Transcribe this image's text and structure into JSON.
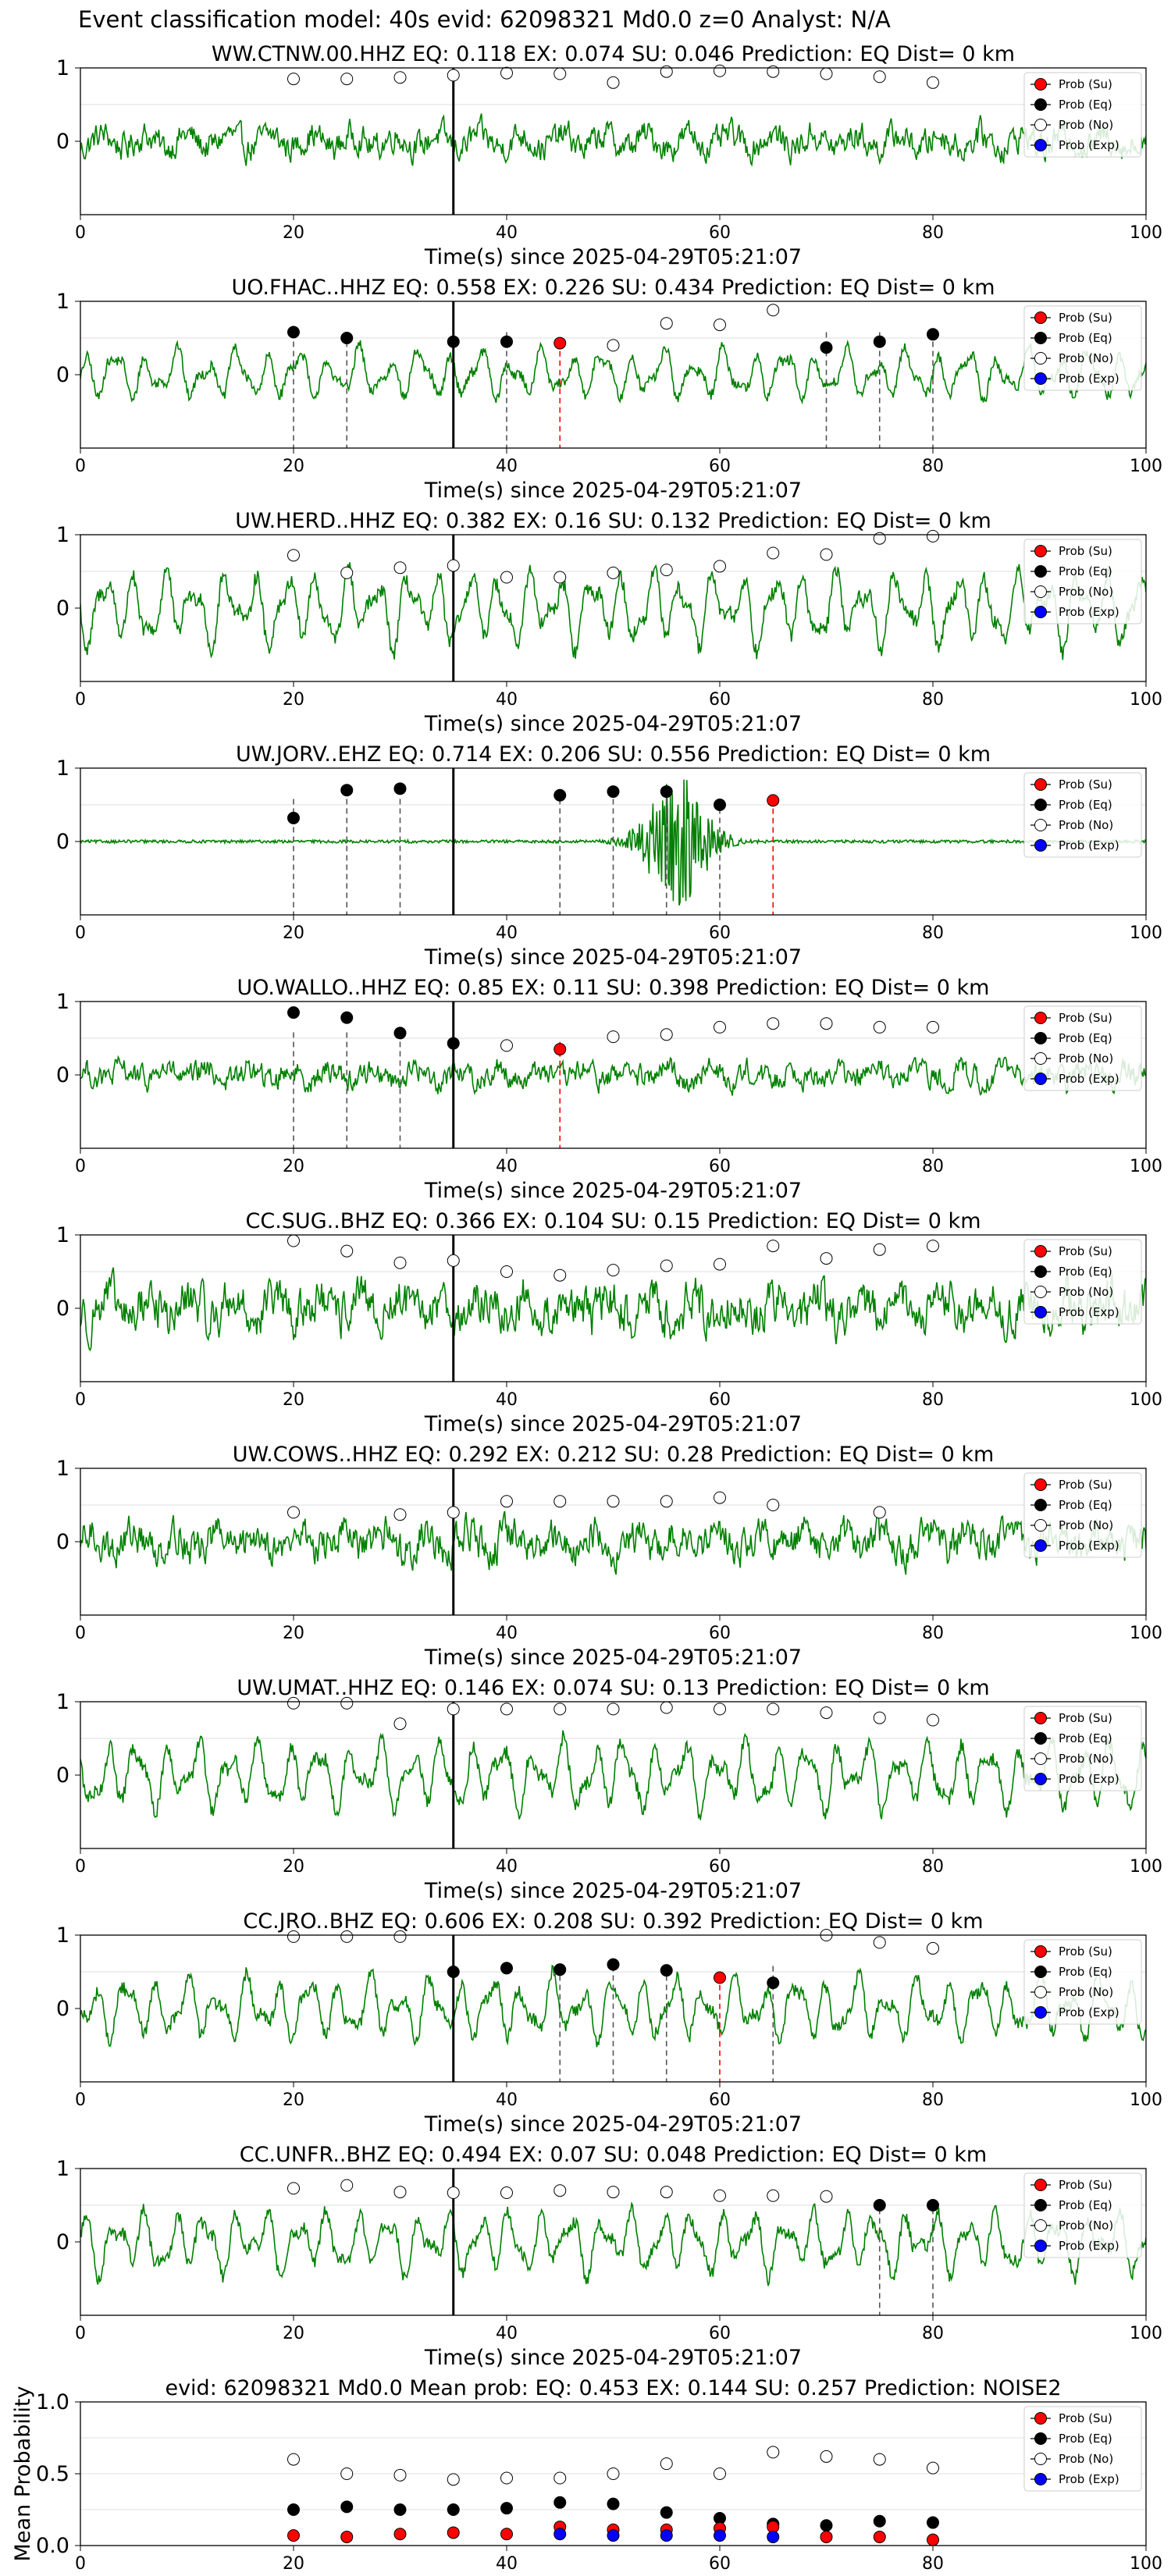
{
  "suptitle": "Event classification model: 40s evid: 62098321 Md0.0 z=0 Analyst: N/A",
  "colors": {
    "trace": "#008000",
    "su": "#ff0000",
    "eq": "#000000",
    "no": "#ffffff",
    "exp": "#0000ff",
    "pick_eq": "#555555",
    "pick_su": "#ff0000",
    "origin": "#000000"
  },
  "legend_labels": [
    "Prob (Su)",
    "Prob (Eq)",
    "Prob (No)",
    "Prob (Exp)"
  ],
  "chart_data": [
    {
      "type": "line",
      "title": "WW.CTNW.00.HHZ   EQ: 0.118  EX: 0.074  SU: 0.046   Prediction: EQ    Dist= 0 km",
      "xlabel": "Time(s) since 2025-04-29T05:21:07",
      "xlim": [
        0,
        100
      ],
      "ylim": [
        -1,
        1
      ],
      "xticks": [
        0,
        20,
        40,
        60,
        80,
        100
      ],
      "yticks": [
        1,
        0
      ],
      "origin_time": 35,
      "legend": "right",
      "trace": {
        "style": "noise",
        "amplitude": 0.35
      },
      "prob_no": [
        [
          20,
          0.85
        ],
        [
          25,
          0.85
        ],
        [
          30,
          0.87
        ],
        [
          35,
          0.9
        ],
        [
          40,
          0.93
        ],
        [
          45,
          0.92
        ],
        [
          50,
          0.8
        ],
        [
          55,
          0.95
        ],
        [
          60,
          0.96
        ],
        [
          65,
          0.95
        ],
        [
          70,
          0.92
        ],
        [
          75,
          0.88
        ],
        [
          80,
          0.8
        ]
      ],
      "prob_eq": [],
      "prob_su": [],
      "picks_eq": [],
      "picks_su": []
    },
    {
      "type": "line",
      "title": "UO.FHAC..HHZ   EQ: 0.558  EX: 0.226  SU: 0.434   Prediction: EQ    Dist= 0 km",
      "xlabel": "Time(s) since 2025-04-29T05:21:07",
      "xlim": [
        0,
        100
      ],
      "ylim": [
        -1,
        1
      ],
      "xticks": [
        0,
        20,
        40,
        60,
        80,
        100
      ],
      "yticks": [
        1,
        0
      ],
      "origin_time": 35,
      "legend": "right",
      "trace": {
        "style": "wave",
        "amplitude": 0.4
      },
      "prob_no": [
        [
          50,
          0.4
        ],
        [
          55,
          0.7
        ],
        [
          60,
          0.68
        ],
        [
          65,
          0.88
        ]
      ],
      "prob_eq": [
        [
          20,
          0.58
        ],
        [
          25,
          0.5
        ],
        [
          35,
          0.45
        ],
        [
          40,
          0.45
        ],
        [
          70,
          0.37
        ],
        [
          75,
          0.45
        ],
        [
          80,
          0.55
        ]
      ],
      "prob_su": [
        [
          45,
          0.43
        ]
      ],
      "picks_eq": [
        20,
        25,
        40,
        70,
        75,
        80
      ],
      "picks_su": [
        45
      ]
    },
    {
      "type": "line",
      "title": "UW.HERD..HHZ   EQ: 0.382  EX: 0.16  SU: 0.132   Prediction: EQ    Dist= 0 km",
      "xlabel": "Time(s) since 2025-04-29T05:21:07",
      "xlim": [
        0,
        100
      ],
      "ylim": [
        -1,
        1
      ],
      "xticks": [
        0,
        20,
        40,
        60,
        80,
        100
      ],
      "yticks": [
        1,
        0
      ],
      "origin_time": 35,
      "legend": "right",
      "trace": {
        "style": "wave",
        "amplitude": 0.6
      },
      "prob_no": [
        [
          20,
          0.72
        ],
        [
          25,
          0.48
        ],
        [
          30,
          0.55
        ],
        [
          35,
          0.58
        ],
        [
          40,
          0.42
        ],
        [
          45,
          0.42
        ],
        [
          50,
          0.48
        ],
        [
          55,
          0.52
        ],
        [
          60,
          0.57
        ],
        [
          65,
          0.75
        ],
        [
          70,
          0.73
        ],
        [
          75,
          0.95
        ],
        [
          80,
          0.98
        ]
      ],
      "prob_eq": [],
      "prob_su": [],
      "picks_eq": [],
      "picks_su": []
    },
    {
      "type": "line",
      "title": "UW.JORV..EHZ   EQ: 0.714  EX: 0.206  SU: 0.556   Prediction: EQ    Dist= 0 km",
      "xlabel": "Time(s) since 2025-04-29T05:21:07",
      "xlim": [
        0,
        100
      ],
      "ylim": [
        -1,
        1
      ],
      "xticks": [
        0,
        20,
        40,
        60,
        80,
        100
      ],
      "yticks": [
        1,
        0
      ],
      "origin_time": 35,
      "legend": "right",
      "trace": {
        "style": "quake",
        "amplitude": 0.02,
        "burst_center": 56,
        "burst_amplitude": 0.9
      },
      "prob_no": [],
      "prob_eq": [
        [
          20,
          0.32
        ],
        [
          25,
          0.7
        ],
        [
          30,
          0.72
        ],
        [
          45,
          0.63
        ],
        [
          50,
          0.68
        ],
        [
          55,
          0.68
        ],
        [
          60,
          0.5
        ]
      ],
      "prob_su": [
        [
          65,
          0.56
        ]
      ],
      "picks_eq": [
        20,
        25,
        30,
        45,
        50,
        55,
        60
      ],
      "picks_su": [
        65
      ]
    },
    {
      "type": "line",
      "title": "UO.WALLO..HHZ   EQ: 0.85  EX: 0.11  SU: 0.398   Prediction: EQ    Dist= 0 km",
      "xlabel": "Time(s) since 2025-04-29T05:21:07",
      "xlim": [
        0,
        100
      ],
      "ylim": [
        -1,
        1
      ],
      "xticks": [
        0,
        20,
        40,
        60,
        80,
        100
      ],
      "yticks": [
        1,
        0
      ],
      "origin_time": 35,
      "legend": "right",
      "trace": {
        "style": "noise",
        "amplitude": 0.3
      },
      "prob_no": [
        [
          40,
          0.4
        ],
        [
          50,
          0.52
        ],
        [
          55,
          0.55
        ],
        [
          60,
          0.65
        ],
        [
          65,
          0.7
        ],
        [
          70,
          0.7
        ],
        [
          75,
          0.65
        ],
        [
          80,
          0.65
        ]
      ],
      "prob_eq": [
        [
          20,
          0.85
        ],
        [
          25,
          0.78
        ],
        [
          30,
          0.57
        ],
        [
          35,
          0.43
        ]
      ],
      "prob_su": [
        [
          45,
          0.35
        ]
      ],
      "picks_eq": [
        20,
        25,
        30
      ],
      "picks_su": [
        45
      ]
    },
    {
      "type": "line",
      "title": "CC.SUG..BHZ   EQ: 0.366  EX: 0.104  SU: 0.15   Prediction: EQ    Dist= 0 km",
      "xlabel": "Time(s) since 2025-04-29T05:21:07",
      "xlim": [
        0,
        100
      ],
      "ylim": [
        -1,
        1
      ],
      "xticks": [
        0,
        20,
        40,
        60,
        80,
        100
      ],
      "yticks": [
        1,
        0
      ],
      "origin_time": 35,
      "legend": "right",
      "trace": {
        "style": "noise",
        "amplitude": 0.55
      },
      "prob_no": [
        [
          20,
          0.92
        ],
        [
          25,
          0.78
        ],
        [
          30,
          0.62
        ],
        [
          35,
          0.65
        ],
        [
          40,
          0.5
        ],
        [
          45,
          0.45
        ],
        [
          50,
          0.52
        ],
        [
          55,
          0.58
        ],
        [
          60,
          0.6
        ],
        [
          65,
          0.85
        ],
        [
          70,
          0.68
        ],
        [
          75,
          0.8
        ],
        [
          80,
          0.85
        ]
      ],
      "prob_eq": [],
      "prob_su": [],
      "picks_eq": [],
      "picks_su": []
    },
    {
      "type": "line",
      "title": "UW.COWS..HHZ   EQ: 0.292  EX: 0.212  SU: 0.28   Prediction: EQ    Dist= 0 km",
      "xlabel": "Time(s) since 2025-04-29T05:21:07",
      "xlim": [
        0,
        100
      ],
      "ylim": [
        -1,
        1
      ],
      "xticks": [
        0,
        20,
        40,
        60,
        80,
        100
      ],
      "yticks": [
        1,
        0
      ],
      "origin_time": 35,
      "legend": "right",
      "trace": {
        "style": "noise",
        "amplitude": 0.45
      },
      "prob_no": [
        [
          20,
          0.4
        ],
        [
          30,
          0.37
        ],
        [
          35,
          0.4
        ],
        [
          40,
          0.55
        ],
        [
          45,
          0.55
        ],
        [
          50,
          0.55
        ],
        [
          55,
          0.55
        ],
        [
          60,
          0.6
        ],
        [
          65,
          0.5
        ],
        [
          75,
          0.4
        ]
      ],
      "prob_eq": [],
      "prob_su": [],
      "picks_eq": [],
      "picks_su": []
    },
    {
      "type": "line",
      "title": "UW.UMAT..HHZ   EQ: 0.146  EX: 0.074  SU: 0.13   Prediction: EQ    Dist= 0 km",
      "xlabel": "Time(s) since 2025-04-29T05:21:07",
      "xlim": [
        0,
        100
      ],
      "ylim": [
        -1,
        1
      ],
      "xticks": [
        0,
        20,
        40,
        60,
        80,
        100
      ],
      "yticks": [
        1,
        0
      ],
      "origin_time": 35,
      "legend": "right",
      "trace": {
        "style": "wave",
        "amplitude": 0.55
      },
      "prob_no": [
        [
          20,
          0.98
        ],
        [
          25,
          0.98
        ],
        [
          30,
          0.7
        ],
        [
          35,
          0.9
        ],
        [
          40,
          0.9
        ],
        [
          45,
          0.9
        ],
        [
          50,
          0.9
        ],
        [
          55,
          0.92
        ],
        [
          60,
          0.9
        ],
        [
          65,
          0.9
        ],
        [
          70,
          0.85
        ],
        [
          75,
          0.78
        ],
        [
          80,
          0.75
        ]
      ],
      "prob_eq": [],
      "prob_su": [],
      "picks_eq": [],
      "picks_su": []
    },
    {
      "type": "line",
      "title": "CC.JRO..BHZ   EQ: 0.606  EX: 0.208  SU: 0.392   Prediction: EQ    Dist= 0 km",
      "xlabel": "Time(s) since 2025-04-29T05:21:07",
      "xlim": [
        0,
        100
      ],
      "ylim": [
        -1,
        1
      ],
      "xticks": [
        0,
        20,
        40,
        60,
        80,
        100
      ],
      "yticks": [
        1,
        0
      ],
      "origin_time": 35,
      "legend": "right",
      "trace": {
        "style": "wave",
        "amplitude": 0.5
      },
      "prob_no": [
        [
          20,
          0.98
        ],
        [
          25,
          0.98
        ],
        [
          30,
          0.98
        ],
        [
          70,
          1.0
        ],
        [
          75,
          0.9
        ],
        [
          80,
          0.82
        ]
      ],
      "prob_eq": [
        [
          35,
          0.5
        ],
        [
          40,
          0.55
        ],
        [
          45,
          0.53
        ],
        [
          50,
          0.6
        ],
        [
          55,
          0.52
        ],
        [
          65,
          0.35
        ]
      ],
      "prob_su": [
        [
          60,
          0.42
        ]
      ],
      "picks_eq": [
        45,
        50,
        55,
        65
      ],
      "picks_su": [
        60
      ]
    },
    {
      "type": "line",
      "title": "CC.UNFR..BHZ   EQ: 0.494  EX: 0.07  SU: 0.048   Prediction: EQ    Dist= 0 km",
      "xlabel": "Time(s) since 2025-04-29T05:21:07",
      "xlim": [
        0,
        100
      ],
      "ylim": [
        -1,
        1
      ],
      "xticks": [
        0,
        20,
        40,
        60,
        80,
        100
      ],
      "yticks": [
        1,
        0
      ],
      "origin_time": 35,
      "legend": "right",
      "trace": {
        "style": "wave",
        "amplitude": 0.5
      },
      "prob_no": [
        [
          20,
          0.73
        ],
        [
          25,
          0.77
        ],
        [
          30,
          0.68
        ],
        [
          35,
          0.67
        ],
        [
          40,
          0.67
        ],
        [
          45,
          0.7
        ],
        [
          50,
          0.68
        ],
        [
          55,
          0.68
        ],
        [
          60,
          0.63
        ],
        [
          65,
          0.63
        ],
        [
          70,
          0.62
        ]
      ],
      "prob_eq": [
        [
          75,
          0.5
        ],
        [
          80,
          0.5
        ]
      ],
      "prob_su": [],
      "picks_eq": [
        75,
        80
      ],
      "picks_su": []
    },
    {
      "type": "scatter",
      "title": "evid: 62098321   Md0.0    Mean prob:   EQ: 0.453  EX: 0.144  SU: 0.257   Prediction: NOISE2",
      "xlabel": "",
      "ylabel": "Mean Probability",
      "xlim": [
        0,
        100
      ],
      "ylim": [
        0,
        1
      ],
      "xticks": [
        0,
        20,
        40,
        60,
        80,
        100
      ],
      "yticks": [
        0.0,
        0.5,
        1.0
      ],
      "ytick_labels": [
        "0.0",
        "0.5",
        "1.0"
      ],
      "legend": "right",
      "prob_no": [
        [
          20,
          0.6
        ],
        [
          25,
          0.5
        ],
        [
          30,
          0.49
        ],
        [
          35,
          0.46
        ],
        [
          40,
          0.47
        ],
        [
          45,
          0.47
        ],
        [
          50,
          0.5
        ],
        [
          55,
          0.57
        ],
        [
          60,
          0.5
        ],
        [
          65,
          0.65
        ],
        [
          70,
          0.62
        ],
        [
          75,
          0.6
        ],
        [
          80,
          0.54
        ]
      ],
      "prob_eq": [
        [
          20,
          0.25
        ],
        [
          25,
          0.27
        ],
        [
          30,
          0.25
        ],
        [
          35,
          0.25
        ],
        [
          40,
          0.26
        ],
        [
          45,
          0.3
        ],
        [
          50,
          0.29
        ],
        [
          55,
          0.23
        ],
        [
          60,
          0.19
        ],
        [
          65,
          0.15
        ],
        [
          70,
          0.14
        ],
        [
          75,
          0.17
        ],
        [
          80,
          0.16
        ]
      ],
      "prob_su": [
        [
          20,
          0.07
        ],
        [
          25,
          0.06
        ],
        [
          30,
          0.08
        ],
        [
          35,
          0.09
        ],
        [
          40,
          0.08
        ],
        [
          45,
          0.13
        ],
        [
          50,
          0.11
        ],
        [
          55,
          0.11
        ],
        [
          60,
          0.12
        ],
        [
          65,
          0.13
        ],
        [
          70,
          0.06
        ],
        [
          75,
          0.06
        ],
        [
          80,
          0.04
        ]
      ],
      "prob_exp": [
        [
          45,
          0.08
        ],
        [
          50,
          0.07
        ],
        [
          55,
          0.07
        ],
        [
          60,
          0.07
        ],
        [
          65,
          0.06
        ]
      ]
    }
  ]
}
